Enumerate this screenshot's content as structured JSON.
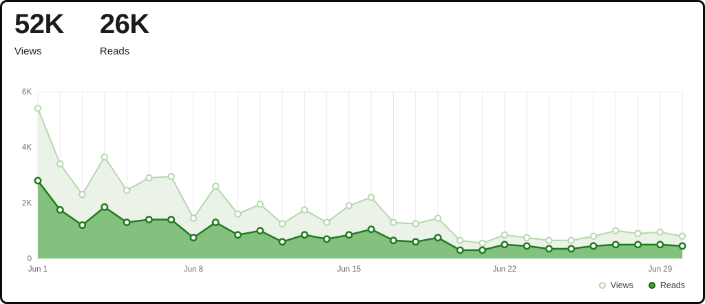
{
  "header": {
    "stats": [
      {
        "value": "52K",
        "label": "Views"
      },
      {
        "value": "26K",
        "label": "Reads"
      }
    ]
  },
  "chart_data": {
    "type": "area",
    "categories": [
      "Jun 1",
      "Jun 2",
      "Jun 3",
      "Jun 4",
      "Jun 5",
      "Jun 6",
      "Jun 7",
      "Jun 8",
      "Jun 9",
      "Jun 10",
      "Jun 11",
      "Jun 12",
      "Jun 13",
      "Jun 14",
      "Jun 15",
      "Jun 16",
      "Jun 17",
      "Jun 18",
      "Jun 19",
      "Jun 20",
      "Jun 21",
      "Jun 22",
      "Jun 23",
      "Jun 24",
      "Jun 25",
      "Jun 26",
      "Jun 27",
      "Jun 28",
      "Jun 29",
      "Jun 30"
    ],
    "series": [
      {
        "name": "Views",
        "values": [
          5400,
          3400,
          2300,
          3650,
          2450,
          2900,
          2950,
          1450,
          2600,
          1600,
          1950,
          1250,
          1750,
          1300,
          1900,
          2200,
          1300,
          1250,
          1450,
          650,
          550,
          850,
          750,
          650,
          650,
          800,
          1000,
          900,
          950,
          800
        ],
        "line_color": "#b3d8ab",
        "fill_color": "#ebf3e8"
      },
      {
        "name": "Reads",
        "values": [
          2800,
          1750,
          1200,
          1850,
          1300,
          1400,
          1400,
          750,
          1300,
          850,
          1000,
          600,
          850,
          700,
          850,
          1050,
          650,
          600,
          750,
          300,
          300,
          500,
          450,
          350,
          350,
          450,
          500,
          500,
          500,
          450
        ],
        "line_color": "#1e7b1e",
        "fill_color": "#84c17e"
      }
    ],
    "ylim": [
      0,
      6000
    ],
    "yticks": [
      {
        "label": "0",
        "value": 0
      },
      {
        "label": "2K",
        "value": 2000
      },
      {
        "label": "4K",
        "value": 4000
      },
      {
        "label": "6K",
        "value": 6000
      }
    ],
    "xticks": [
      {
        "label": "Jun 1",
        "index": 0
      },
      {
        "label": "Jun 8",
        "index": 7
      },
      {
        "label": "Jun 15",
        "index": 14
      },
      {
        "label": "Jun 22",
        "index": 21
      },
      {
        "label": "Jun 29",
        "index": 28
      }
    ],
    "grid": "vertical-daily",
    "grid_color": "#e8e8e8",
    "axis_text_color": "#6e6e6e",
    "legend_position": "bottom-right"
  }
}
